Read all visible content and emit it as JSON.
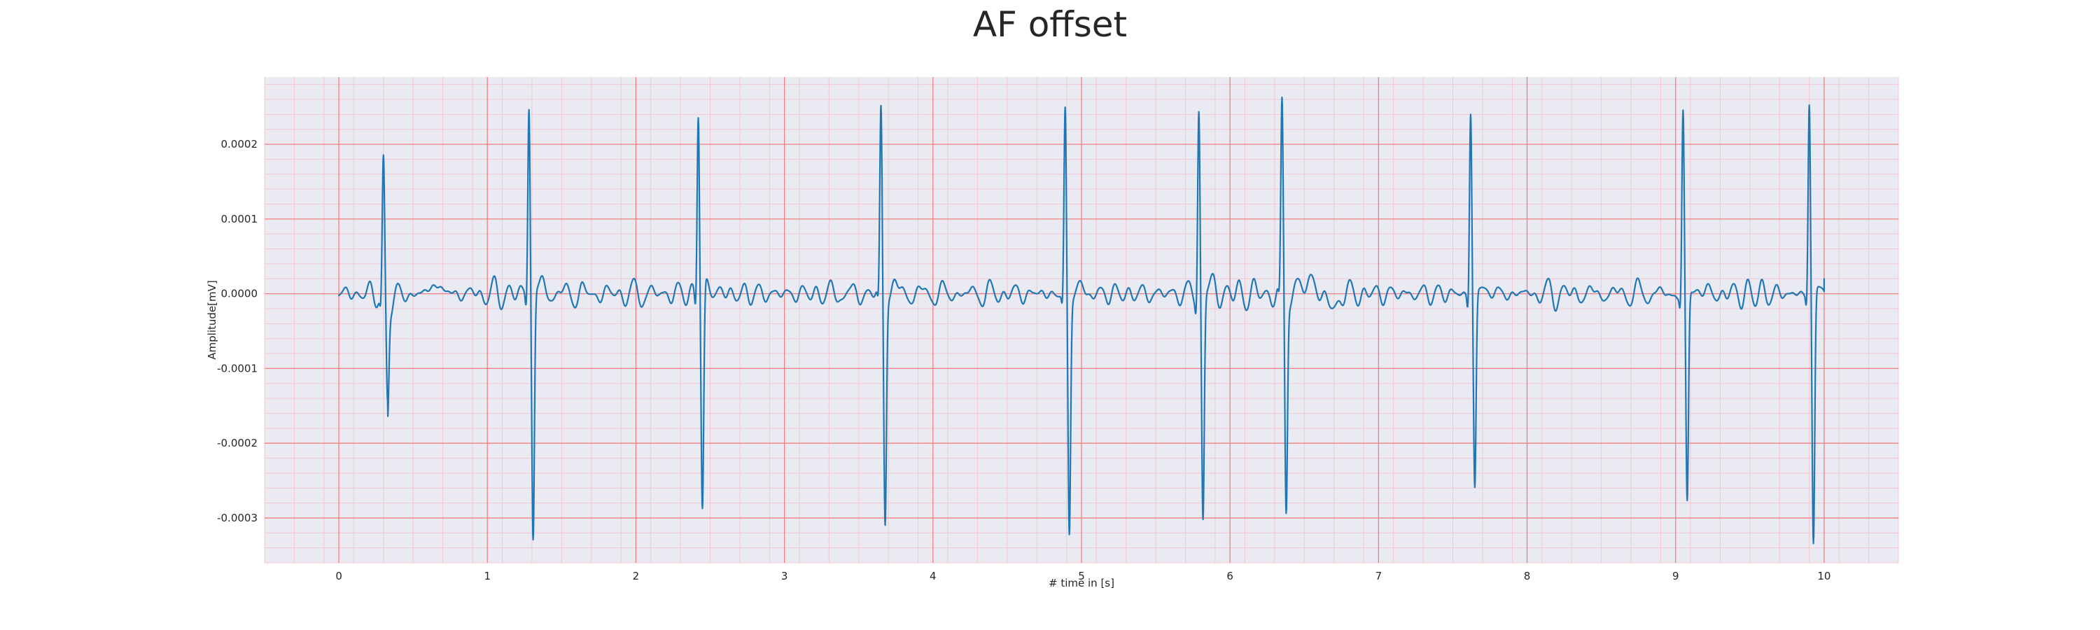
{
  "chart_data": {
    "type": "line",
    "title": "AF offset",
    "xlabel": "# time in [s]",
    "ylabel": "Amplitude[mV]",
    "xlim": [
      -0.5,
      10.5
    ],
    "ylim": [
      -0.00036,
      0.00029
    ],
    "xticks": [
      0,
      1,
      2,
      3,
      4,
      5,
      6,
      7,
      8,
      9,
      10
    ],
    "xtick_labels": [
      "0",
      "1",
      "2",
      "3",
      "4",
      "5",
      "6",
      "7",
      "8",
      "9",
      "10"
    ],
    "yticks": [
      0.0002,
      0.0001,
      0.0,
      -0.0001,
      -0.0002,
      -0.0003
    ],
    "ytick_labels": [
      "0.0002",
      "0.0001",
      "0.0000",
      "-0.0001",
      "-0.0002",
      "-0.0003"
    ],
    "grid": true,
    "grid_minor": true,
    "legend": "none",
    "colors": {
      "background": "#eaeaf2",
      "major_grid": "#f08080",
      "minor_grid": "#f5c6d0",
      "line": "#1f77b4"
    },
    "beats": [
      {
        "t": 0.3,
        "r": 0.00017,
        "s": -0.000145
      },
      {
        "t": 1.28,
        "r": 0.00026,
        "s": -0.000325
      },
      {
        "t": 2.42,
        "r": 0.00025,
        "s": -0.00029
      },
      {
        "t": 3.65,
        "r": 0.000245,
        "s": -0.0003
      },
      {
        "t": 4.89,
        "r": 0.00024,
        "s": -0.00032
      },
      {
        "t": 5.79,
        "r": 0.00025,
        "s": -0.0003
      },
      {
        "t": 6.35,
        "r": 0.000245,
        "s": -0.00029
      },
      {
        "t": 7.62,
        "r": 0.000245,
        "s": -0.000265
      },
      {
        "t": 9.05,
        "r": 0.00024,
        "s": -0.000285
      },
      {
        "t": 9.9,
        "r": 0.000255,
        "s": -0.000335
      }
    ],
    "series": [
      {
        "x_start": 0.0,
        "x_end": 10.0,
        "baseline": 0.0,
        "end_value": 2e-05
      }
    ]
  }
}
